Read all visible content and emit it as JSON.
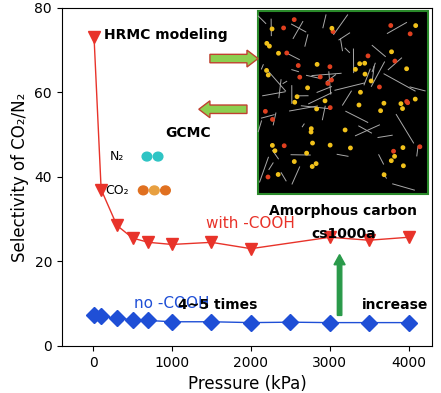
{
  "chart_data": {
    "type": "line",
    "x_label": "Pressure (kPa)",
    "y_label": "Selectivity of CO₂/N₂",
    "series": [
      {
        "name": "with -COOH",
        "color": "#e8332a",
        "marker": "v",
        "line_style": "solid",
        "x": [
          10,
          100,
          300,
          500,
          700,
          1000,
          1500,
          2000,
          3000,
          3500,
          4000
        ],
        "values": [
          73,
          37,
          28.5,
          25.5,
          24.5,
          24,
          24.5,
          23,
          25.7,
          25,
          25.7
        ]
      },
      {
        "name": "no -COOH",
        "color": "#1f4fd6",
        "marker": "D",
        "line_style": "solid",
        "x": [
          10,
          100,
          300,
          500,
          700,
          1000,
          1500,
          2000,
          2500,
          3000,
          3500,
          4000
        ],
        "values": [
          7.2,
          7.0,
          6.5,
          6.2,
          6.0,
          5.7,
          5.7,
          5.5,
          5.6,
          5.5,
          5.5,
          5.5
        ]
      }
    ],
    "xlim": [
      -400,
      4300
    ],
    "xticks": [
      0,
      1000,
      2000,
      3000,
      4000
    ],
    "ylim": [
      0,
      80
    ],
    "yticks": [
      0,
      20,
      40,
      60,
      80
    ],
    "grid": false,
    "annotations": [
      "HRMC modeling",
      "GCMC",
      "N₂",
      "CO₂",
      "Amorphous carbon",
      "cs1000a",
      "4~5 times",
      "increase"
    ]
  }
}
